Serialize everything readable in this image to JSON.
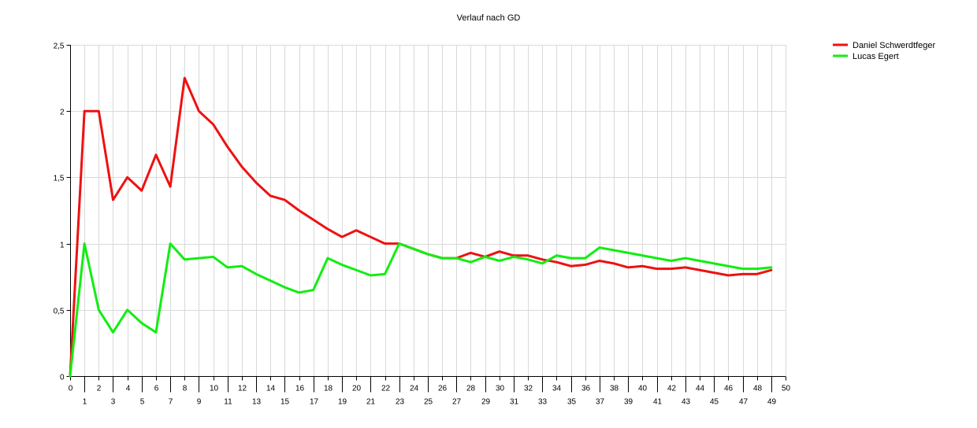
{
  "chart_data": {
    "type": "line",
    "title": "Verlauf nach GD",
    "xlabel": "",
    "ylabel": "",
    "xlim": [
      0,
      50
    ],
    "ylim": [
      0,
      2.5
    ],
    "y_ticks": [
      "0",
      "0,5",
      "1",
      "1,5",
      "2",
      "2,5"
    ],
    "grid": true,
    "legend_position": "top-right",
    "x": [
      0,
      1,
      2,
      3,
      4,
      5,
      6,
      7,
      8,
      9,
      10,
      11,
      12,
      13,
      14,
      15,
      16,
      17,
      18,
      19,
      20,
      21,
      22,
      23,
      24,
      25,
      26,
      27,
      28,
      29,
      30,
      31,
      32,
      33,
      34,
      35,
      36,
      37,
      38,
      39,
      40,
      41,
      42,
      43,
      44,
      45,
      46,
      47,
      48,
      49
    ],
    "series": [
      {
        "name": "Daniel Schwerdtfeger",
        "color": "#ee1111",
        "values": [
          0,
          2.0,
          2.0,
          1.33,
          1.5,
          1.4,
          1.67,
          1.43,
          2.25,
          2.0,
          1.9,
          1.73,
          1.58,
          1.46,
          1.36,
          1.33,
          1.25,
          1.18,
          1.11,
          1.05,
          1.1,
          1.05,
          1.0,
          1.0,
          0.96,
          0.92,
          0.89,
          0.89,
          0.93,
          0.9,
          0.94,
          0.91,
          0.91,
          0.88,
          0.86,
          0.83,
          0.84,
          0.87,
          0.85,
          0.82,
          0.83,
          0.81,
          0.81,
          0.82,
          0.8,
          0.78,
          0.76,
          0.77,
          0.77,
          0.8
        ]
      },
      {
        "name": "Lucas Egert",
        "color": "#11ee11",
        "values": [
          0,
          1.0,
          0.5,
          0.33,
          0.5,
          0.4,
          0.33,
          1.0,
          0.88,
          0.89,
          0.9,
          0.82,
          0.83,
          0.77,
          0.72,
          0.67,
          0.63,
          0.65,
          0.89,
          0.84,
          0.8,
          0.76,
          0.77,
          1.0,
          0.96,
          0.92,
          0.89,
          0.89,
          0.86,
          0.9,
          0.87,
          0.9,
          0.88,
          0.85,
          0.91,
          0.89,
          0.89,
          0.97,
          0.95,
          0.93,
          0.91,
          0.89,
          0.87,
          0.89,
          0.87,
          0.85,
          0.83,
          0.81,
          0.81,
          0.82
        ]
      }
    ]
  }
}
